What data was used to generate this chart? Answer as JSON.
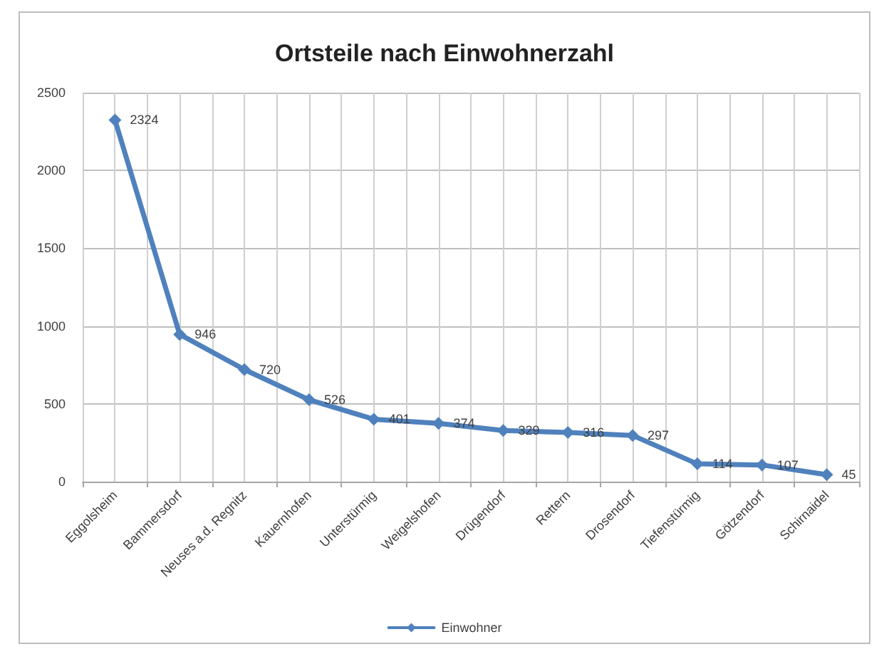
{
  "chart_data": {
    "type": "line",
    "title": "Ortsteile nach Einwohnerzahl",
    "categories": [
      "Eggolsheim",
      "Bammersdorf",
      "Neuses a.d. Regnitz",
      "Kauernhofen",
      "Unterstürmig",
      "Weigelshofen",
      "Drügendorf",
      "Rettern",
      "Drosendorf",
      "Tiefenstürmig",
      "Götzendorf",
      "Schirnaidel"
    ],
    "series": [
      {
        "name": "Einwohner",
        "color": "#4f81bd",
        "values": [
          2324,
          946,
          720,
          526,
          401,
          374,
          329,
          316,
          297,
          114,
          107,
          45
        ]
      }
    ],
    "ylim": [
      0,
      2500
    ],
    "yticks": [
      0,
      500,
      1000,
      1500,
      2000,
      2500
    ],
    "grid": true,
    "legend": "bottom",
    "marker": "diamond",
    "line_style": "solid",
    "data_labels": true
  }
}
